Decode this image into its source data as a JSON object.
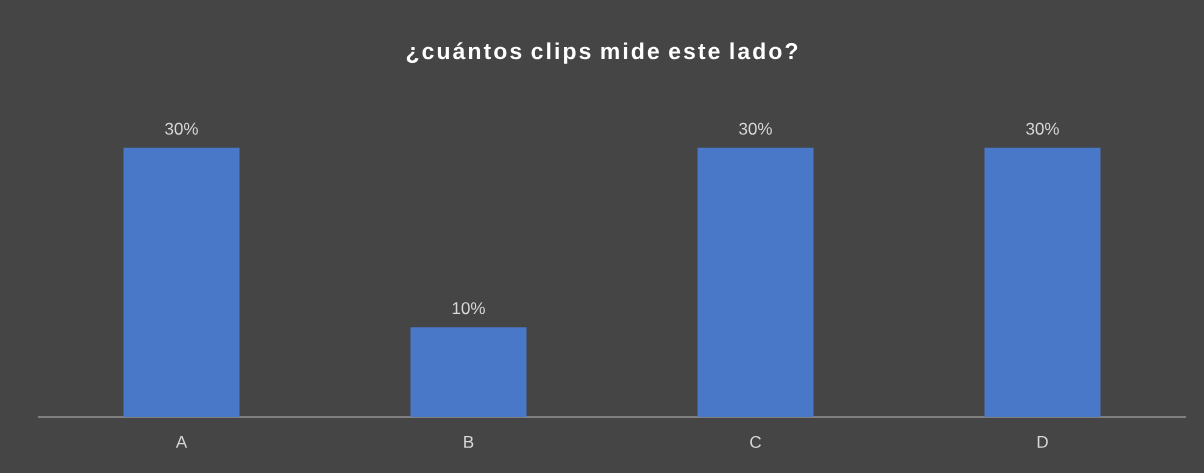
{
  "chart_data": {
    "type": "bar",
    "title": "¿cuántos clips mide este lado?",
    "categories": [
      "A",
      "B",
      "C",
      "D"
    ],
    "values": [
      30,
      10,
      30,
      30
    ],
    "value_labels": [
      "30%",
      "10%",
      "30%",
      "30%"
    ],
    "color": "#4a78c8"
  }
}
